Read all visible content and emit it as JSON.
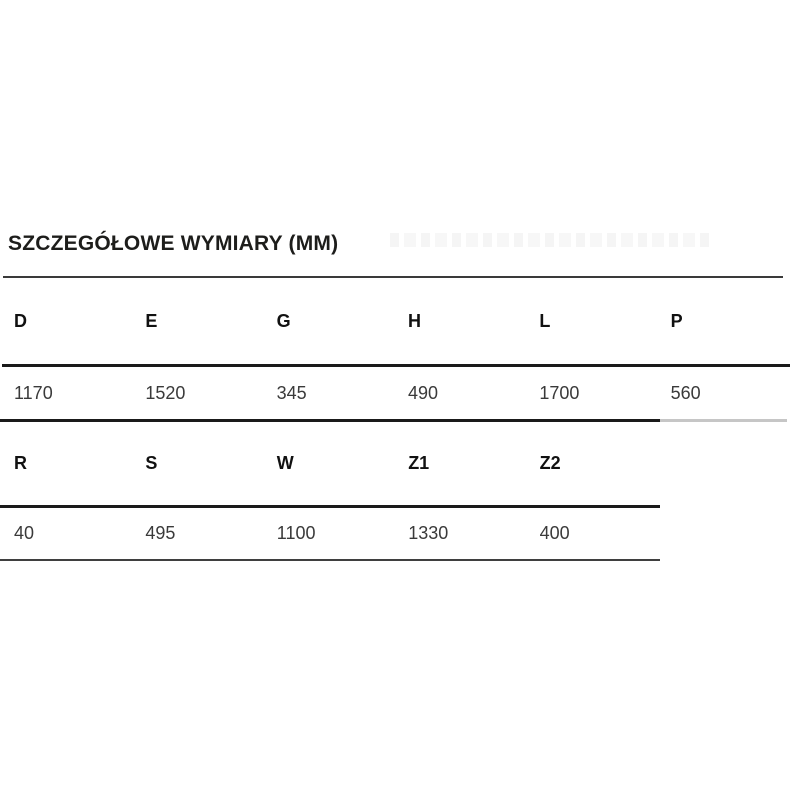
{
  "page": {
    "title": "SZCZEGÓŁOWE WYMIARY (MM)",
    "unit": "MM"
  },
  "colors": {
    "background": "#ffffff",
    "title_text": "#1d1d1b",
    "header_text": "#111111",
    "value_text": "#3a3a3a",
    "rule_black": "#1a1a1a",
    "rule_gray": "#c6c6c6"
  },
  "table": {
    "sections": [
      {
        "headers": [
          "D",
          "E",
          "G",
          "H",
          "L",
          "P"
        ],
        "values": [
          "1170",
          "1520",
          "345",
          "490",
          "1700",
          "560"
        ]
      },
      {
        "headers": [
          "R",
          "S",
          "W",
          "Z1",
          "Z2"
        ],
        "values": [
          "40",
          "495",
          "1100",
          "1330",
          "400"
        ]
      }
    ]
  }
}
